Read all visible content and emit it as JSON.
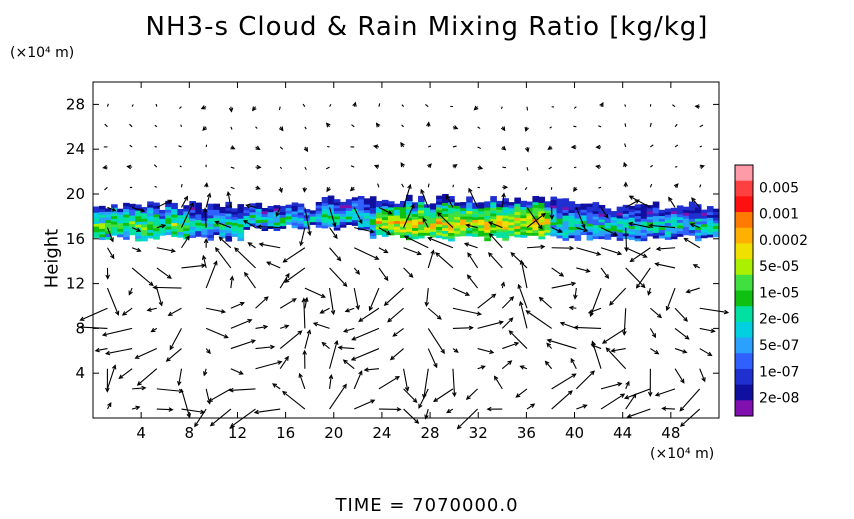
{
  "chart_data": {
    "type": "contour-vector",
    "title": "NH3-s Cloud & Rain Mixing Ratio [kg/kg]",
    "ylabel": "Height",
    "x_unit": "(×10⁴ m)",
    "y_unit": "(×10⁴ m)",
    "xlim": [
      0,
      52
    ],
    "ylim": [
      0,
      30
    ],
    "x_ticks": [
      4,
      8,
      12,
      16,
      20,
      24,
      28,
      32,
      36,
      40,
      44,
      48
    ],
    "y_ticks": [
      4,
      8,
      12,
      16,
      20,
      24,
      28
    ],
    "colorbar": {
      "labels": [
        "0.005",
        "0.001",
        "0.0002",
        "5e-05",
        "1e-05",
        "2e-06",
        "5e-07",
        "1e-07",
        "2e-08"
      ],
      "colors": [
        "#ff9aa8",
        "#ff4040",
        "#ff1010",
        "#ff7a00",
        "#ffb000",
        "#f0e000",
        "#aaf000",
        "#40e040",
        "#10c010",
        "#00e0a0",
        "#00d0e0",
        "#2aa0ff",
        "#3060ff",
        "#2030d0",
        "#1010a0",
        "#8010b0"
      ]
    },
    "cloud_layer": {
      "bottom": 15.8,
      "top": 19.2
    },
    "time_label": "TIME  =  7070000.0"
  }
}
